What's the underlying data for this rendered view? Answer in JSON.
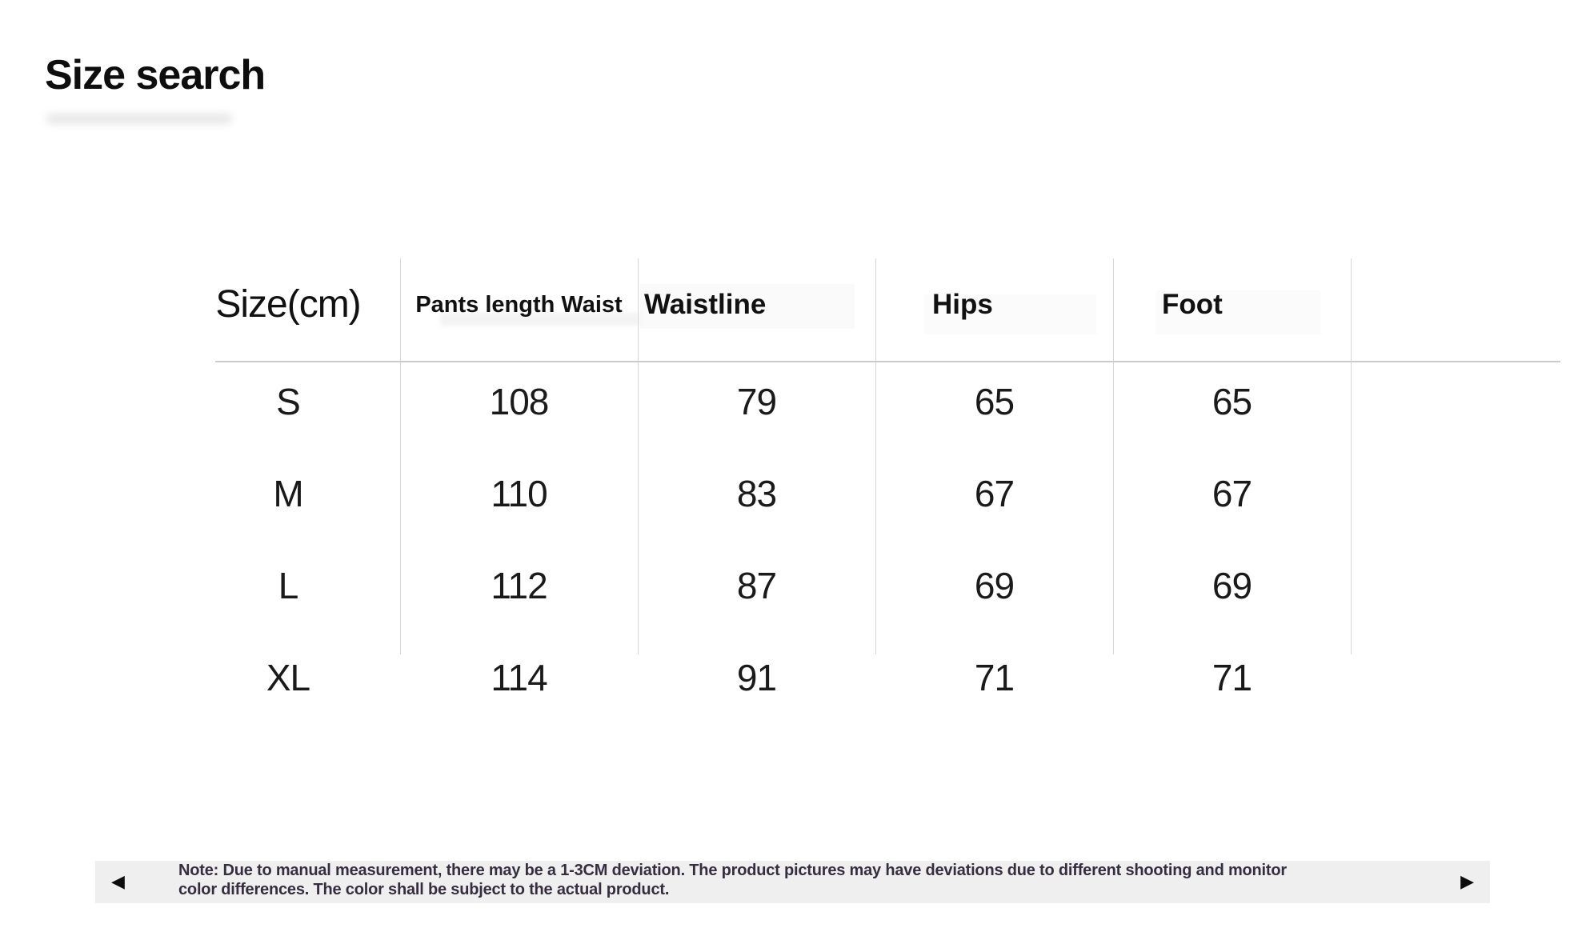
{
  "page": {
    "title": "Size search",
    "background_color": "#ffffff"
  },
  "size_table": {
    "headers": [
      {
        "label": "Size(cm)"
      },
      {
        "label": "Pants length Waist"
      },
      {
        "label": "Waistline"
      },
      {
        "label": "Hips"
      },
      {
        "label": "Foot"
      }
    ],
    "rows": [
      {
        "cells": [
          "S",
          "108",
          "79",
          "65",
          "65"
        ]
      },
      {
        "cells": [
          "M",
          "110",
          "83",
          "67",
          "67"
        ]
      },
      {
        "cells": [
          "L",
          "112",
          "87",
          "69",
          "69"
        ]
      },
      {
        "cells": [
          "XL",
          "114",
          "91",
          "71",
          "71"
        ]
      }
    ]
  },
  "note_bar": {
    "prev_icon": "◀",
    "next_icon": "▶",
    "line1": "Note: Due to manual measurement, there may be a 1-3CM deviation. The product pictures may have deviations due to different shooting and monitor",
    "line2": "color differences. The color shall be subject to the actual product.",
    "background_color": "#efefef",
    "text_color": "#362e40"
  },
  "colors": {
    "table_line_vertical": "#d7d7d7",
    "table_line_horizontal": "#cbcbcb",
    "text_primary": "#141414"
  }
}
